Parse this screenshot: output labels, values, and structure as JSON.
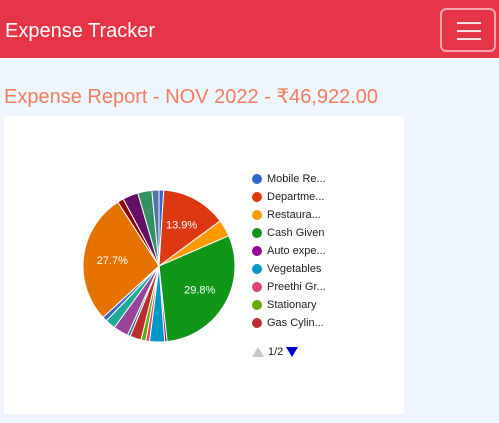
{
  "navbar": {
    "brand": "Expense Tracker",
    "menu_icon": "hamburger-menu-icon"
  },
  "report_title": "Expense Report - NOV 2022 - ₹46,922.00",
  "pager_text": "1/2",
  "chart_data": {
    "type": "pie",
    "total_label": "₹46,922.00",
    "legend_position": "right",
    "legend_visible_labels": [
      "Mobile Re...",
      "Departme...",
      "Restaura...",
      "Cash Given",
      "Auto expe...",
      "Vegetables",
      "Preethi Gr...",
      "Stationary",
      "Gas Cylin..."
    ],
    "slices": [
      {
        "label": "Mobile Re...",
        "percent": 1.0,
        "color": "#3366cc",
        "legend": true
      },
      {
        "label": "Departme...",
        "percent": 13.9,
        "color": "#dc3912",
        "legend": true,
        "data_label": "13.9%"
      },
      {
        "label": "Restaura...",
        "percent": 3.6,
        "color": "#ff9900",
        "legend": true
      },
      {
        "label": "Cash Given",
        "percent": 29.8,
        "color": "#109618",
        "legend": true,
        "data_label": "29.8%"
      },
      {
        "label": "Auto expe...",
        "percent": 0.5,
        "color": "#990099",
        "legend": true
      },
      {
        "label": "Vegetables",
        "percent": 3.2,
        "color": "#0099c6",
        "legend": true
      },
      {
        "label": "Preethi Gr...",
        "percent": 0.8,
        "color": "#dd4477",
        "legend": true
      },
      {
        "label": "Stationary",
        "percent": 1.0,
        "color": "#66aa00",
        "legend": true
      },
      {
        "label": "Gas Cylin...",
        "percent": 2.4,
        "color": "#b82e2e",
        "legend": true
      },
      {
        "percent": 0.6,
        "color": "#316395"
      },
      {
        "percent": 3.2,
        "color": "#994499"
      },
      {
        "percent": 2.2,
        "color": "#22aa99"
      },
      {
        "percent": 1.0,
        "color": "#3366cc"
      },
      {
        "percent": 27.7,
        "color": "#e67300",
        "data_label": "27.7%"
      },
      {
        "percent": 1.3,
        "color": "#8b0707"
      },
      {
        "percent": 3.3,
        "color": "#651067"
      },
      {
        "percent": 3.0,
        "color": "#329262"
      },
      {
        "percent": 1.5,
        "color": "#5574a6"
      }
    ]
  }
}
